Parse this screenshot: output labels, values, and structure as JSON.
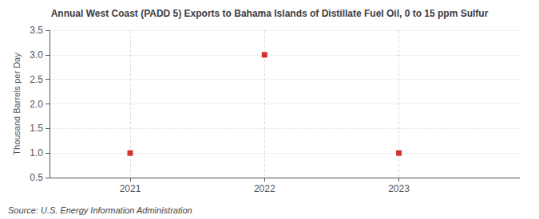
{
  "chart_data": {
    "type": "scatter",
    "title": "Annual West Coast (PADD 5) Exports to Bahama Islands of Distillate Fuel Oil, 0 to 15 ppm Sulfur",
    "ylabel": "Thousand Barrels per Day",
    "source": "Source: U.S. Energy Information Administration",
    "x": [
      2021,
      2022,
      2023
    ],
    "values": [
      1.0,
      3.0,
      1.0
    ],
    "color": "#cc0000",
    "marker": "square",
    "xlim": [
      2020.4,
      2023.9
    ],
    "ylim": [
      0.5,
      3.5
    ],
    "xticks": [
      2021,
      2022,
      2023
    ],
    "yticks": [
      0.5,
      {
        "value": 1.0,
        "label": "1.0"
      },
      1.5,
      {
        "value": 2.0,
        "label": "2.0"
      },
      2.5,
      {
        "value": 3.0,
        "label": "3.0"
      },
      3.5
    ],
    "grid": true
  }
}
